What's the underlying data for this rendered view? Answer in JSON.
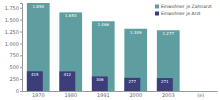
{
  "chart_data": {
    "type": "bar",
    "categories": [
      "1970",
      "1980",
      "1991",
      "2000",
      "2003",
      "(e)"
    ],
    "series": [
      {
        "name": "Einwohner je Zahnarzt",
        "color": "#5f9ea0",
        "values": [
          1850,
          1653,
          1466,
          1309,
          1277,
          null
        ],
        "value_labels": [
          "1.850",
          "1.653",
          "1.466",
          "1.309",
          "1.277",
          null
        ]
      },
      {
        "name": "Einwohner je Arzt",
        "color": "#3d3d7a",
        "values": [
          415,
          412,
          306,
          277,
          271,
          null
        ]
      }
    ],
    "ylim": [
      0,
      1850
    ],
    "yticks": [
      0,
      250,
      500,
      750,
      {
        "value": 1000,
        "label": "1.000"
      },
      {
        "value": 1250,
        "label": "1.250"
      },
      {
        "value": 1500,
        "label": "1.500"
      },
      {
        "value": 1750,
        "label": "1.750"
      }
    ],
    "data_labels": true,
    "legend": "top-right"
  }
}
